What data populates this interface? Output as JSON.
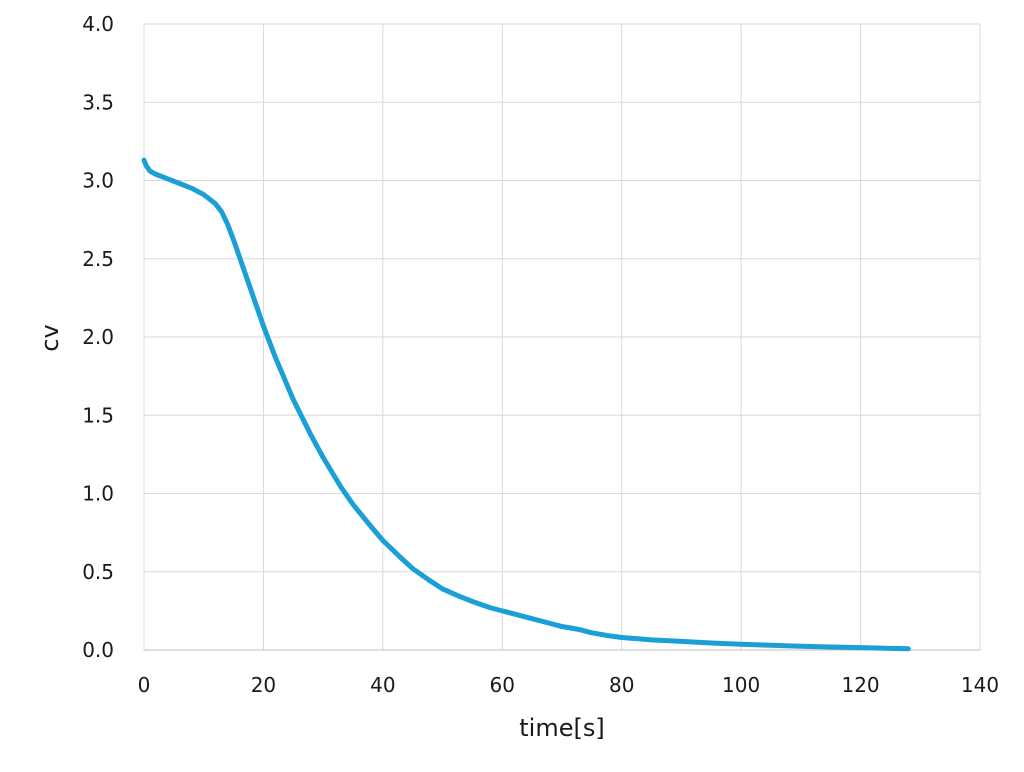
{
  "chart_data": {
    "type": "line",
    "title": "",
    "xlabel": "time[s]",
    "ylabel": "cv",
    "xlim": [
      0,
      140
    ],
    "ylim": [
      0,
      4.0
    ],
    "grid": true,
    "legend": "none",
    "xticks": [
      "0",
      "20",
      "40",
      "60",
      "80",
      "100",
      "120",
      "140"
    ],
    "yticks": [
      "0.0",
      "0.5",
      "1.0",
      "1.5",
      "2.0",
      "2.5",
      "3.0",
      "3.5",
      "4.0"
    ],
    "line_color": "#1a9fd6",
    "grid_color": "#d9d9d9",
    "series": [
      {
        "x": [
          0,
          0.3,
          1,
          2,
          4,
          6,
          8,
          10,
          12,
          13,
          14,
          15,
          16,
          18,
          20,
          22,
          25,
          28,
          30,
          33,
          35,
          38,
          40,
          43,
          45,
          48,
          50,
          53,
          55,
          58,
          60,
          63,
          65,
          68,
          70,
          73,
          75,
          78,
          80,
          85,
          90,
          95,
          100,
          105,
          110,
          115,
          120,
          125,
          128
        ],
        "y": [
          3.13,
          3.1,
          3.06,
          3.04,
          3.01,
          2.98,
          2.95,
          2.91,
          2.85,
          2.8,
          2.72,
          2.62,
          2.51,
          2.29,
          2.07,
          1.87,
          1.6,
          1.37,
          1.23,
          1.04,
          0.93,
          0.79,
          0.7,
          0.59,
          0.52,
          0.44,
          0.39,
          0.34,
          0.31,
          0.27,
          0.25,
          0.22,
          0.2,
          0.17,
          0.15,
          0.13,
          0.11,
          0.09,
          0.08,
          0.065,
          0.055,
          0.045,
          0.037,
          0.03,
          0.024,
          0.019,
          0.015,
          0.01,
          0.008
        ]
      }
    ]
  }
}
